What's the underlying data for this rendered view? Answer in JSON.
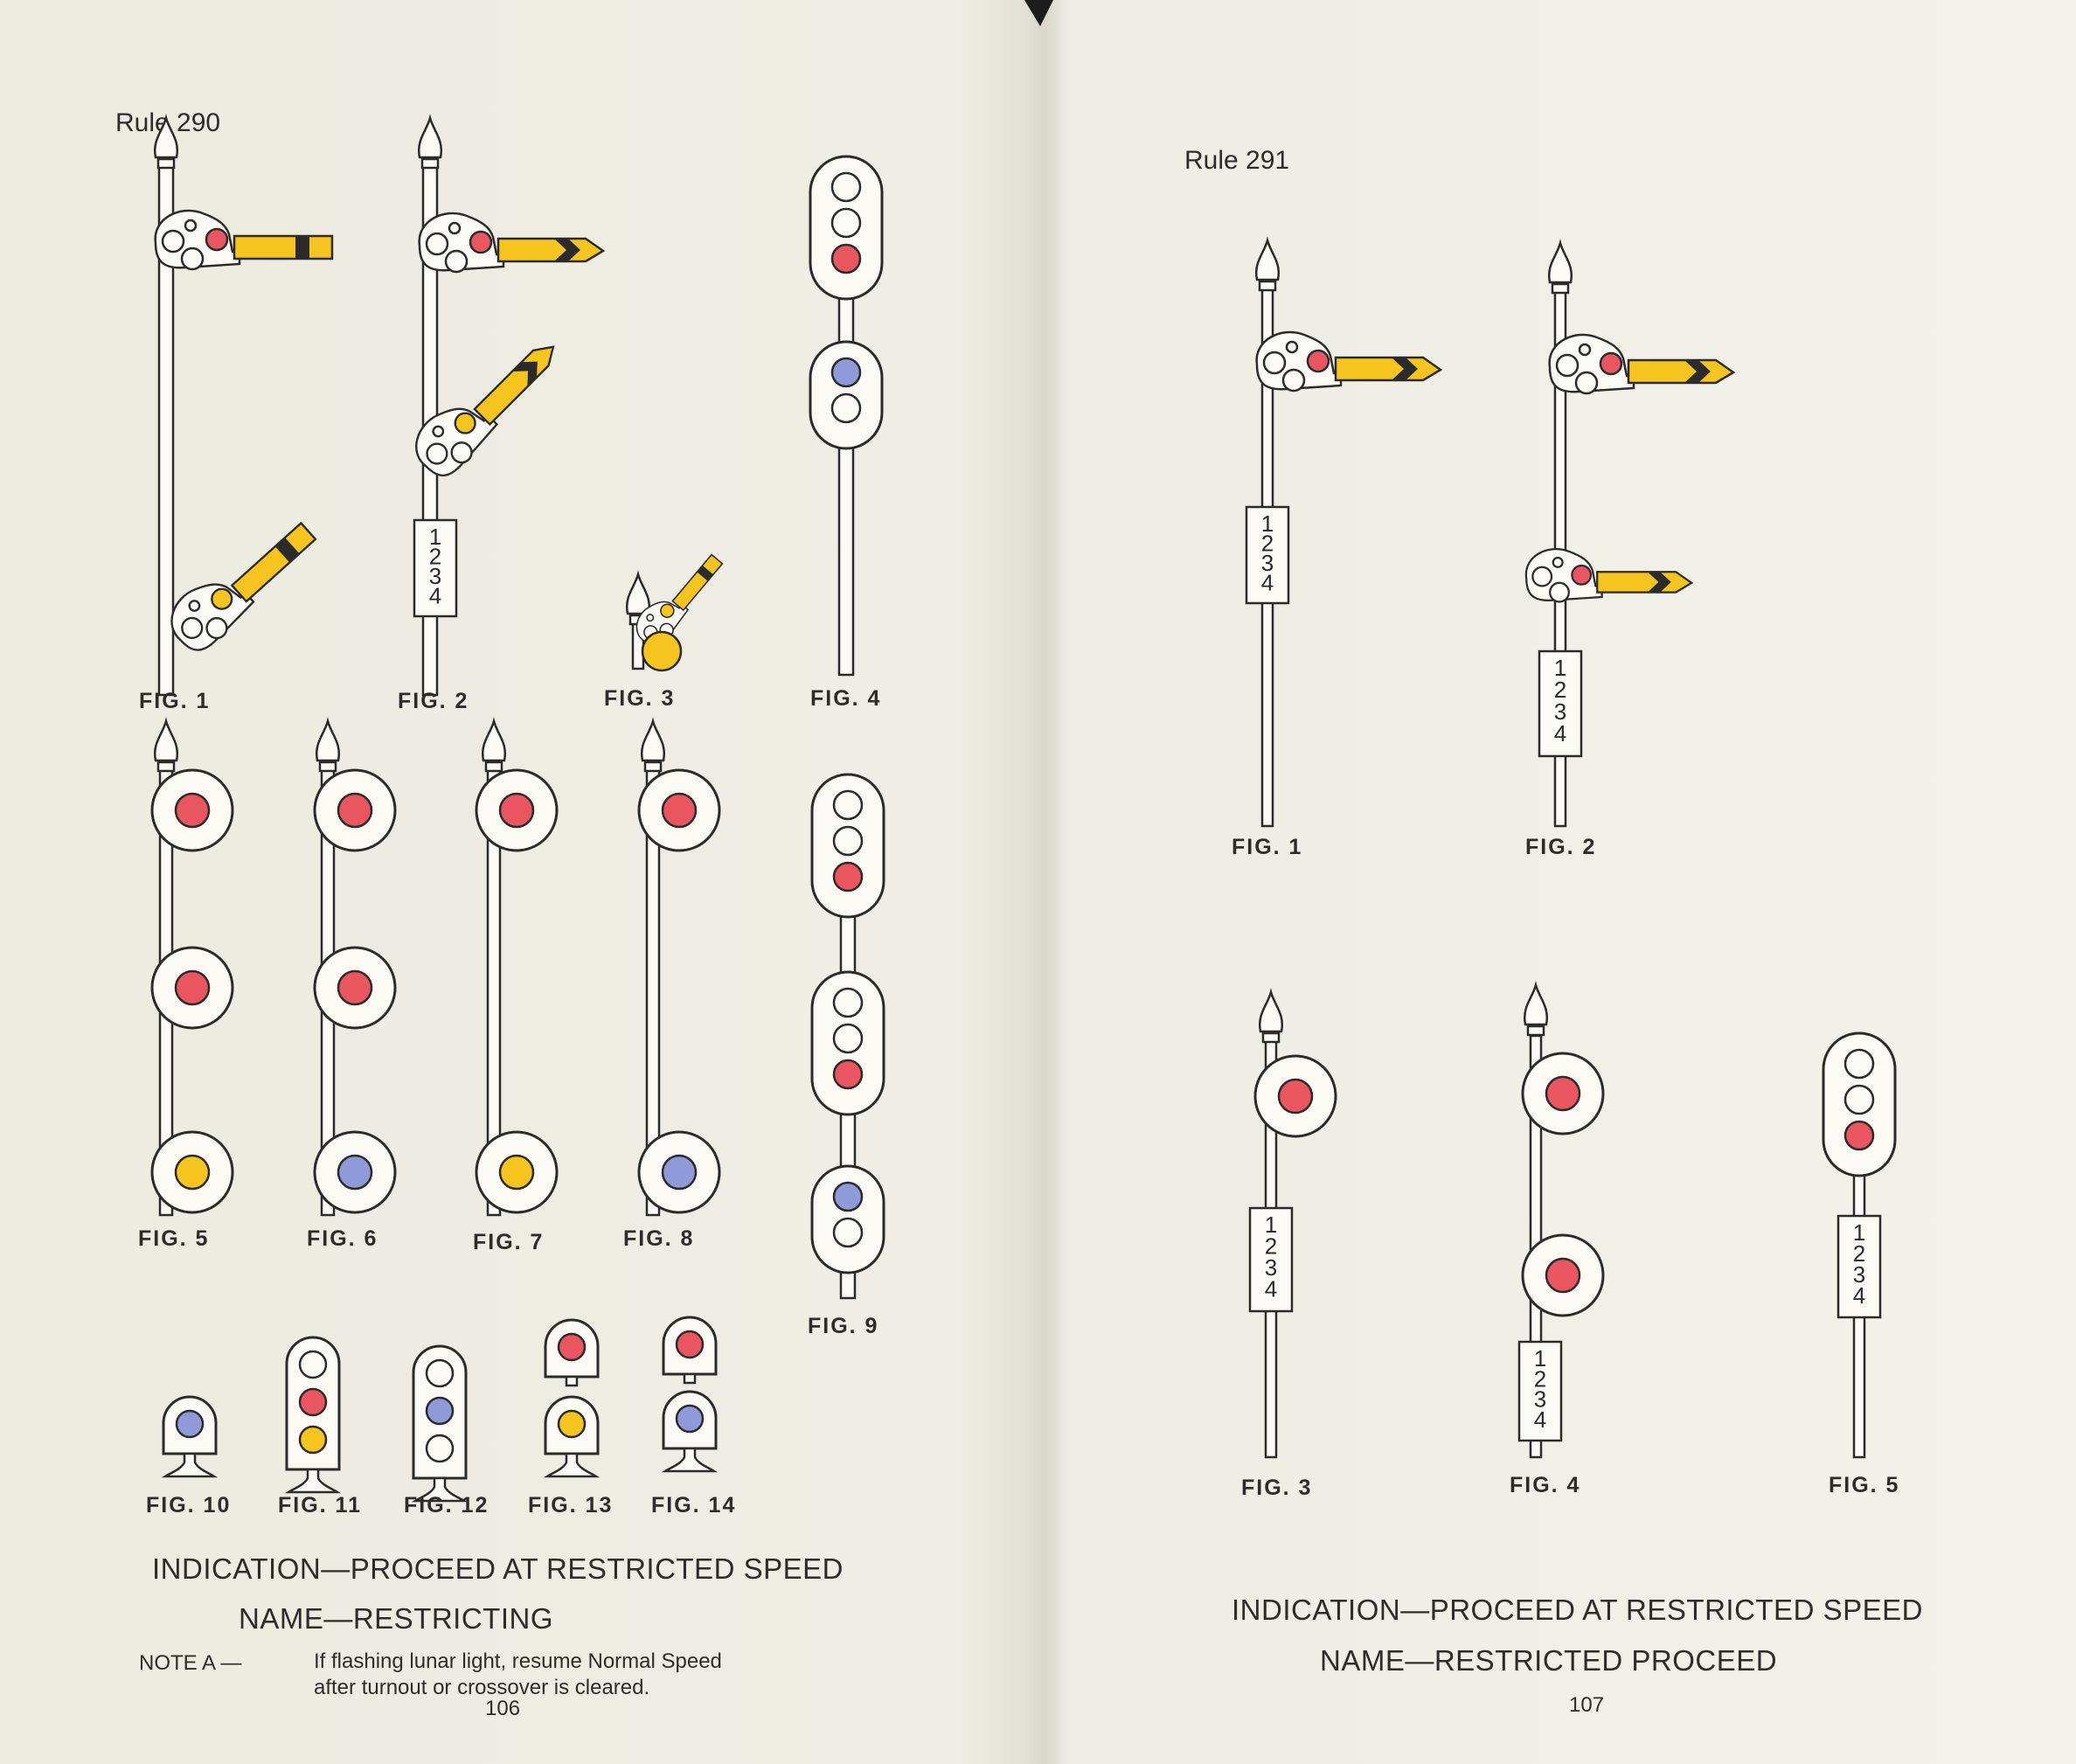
{
  "colors": {
    "red": "#ea5660",
    "yellow": "#f5c41e",
    "blue": "#8e9bd8",
    "off": "#fbfaf4",
    "ink": "#2b2b2b",
    "paper_left": "#efede2",
    "paper_right": "#f3f2ea"
  },
  "plate_digits": [
    "1",
    "2",
    "3",
    "4"
  ],
  "left_page": {
    "rule": "Rule 290",
    "figures": [
      {
        "label": "FIG. 1",
        "lights": [
          "red",
          "yellow"
        ]
      },
      {
        "label": "FIG. 2",
        "lights": [
          "red",
          "yellow"
        ]
      },
      {
        "label": "FIG. 3",
        "lights": [
          "yellow"
        ]
      },
      {
        "label": "FIG. 4",
        "lights": [
          "off",
          "off",
          "red",
          "blue",
          "off"
        ]
      },
      {
        "label": "FIG. 5",
        "lights": [
          "red",
          "red",
          "yellow"
        ]
      },
      {
        "label": "FIG. 6",
        "lights": [
          "red",
          "red",
          "blue"
        ]
      },
      {
        "label": "FIG. 7",
        "lights": [
          "red",
          "yellow"
        ]
      },
      {
        "label": "FIG. 8",
        "lights": [
          "red",
          "blue"
        ]
      },
      {
        "label": "FIG. 9",
        "lights": [
          "off",
          "off",
          "red",
          "off",
          "off",
          "red",
          "blue",
          "off"
        ]
      },
      {
        "label": "FIG. 10",
        "lights": [
          "blue"
        ]
      },
      {
        "label": "FIG. 11",
        "lights": [
          "off",
          "red",
          "yellow"
        ]
      },
      {
        "label": "FIG. 12",
        "lights": [
          "off",
          "blue",
          "off"
        ]
      },
      {
        "label": "FIG. 13",
        "lights": [
          "red",
          "yellow"
        ]
      },
      {
        "label": "FIG. 14",
        "lights": [
          "red",
          "blue"
        ]
      }
    ],
    "indication": "INDICATION—PROCEED AT RESTRICTED SPEED",
    "name": "NAME—RESTRICTING",
    "note_label": "NOTE A —",
    "note_lines": [
      "If flashing lunar light, resume Normal Speed",
      "after turnout or crossover is cleared."
    ],
    "page_number": "106"
  },
  "right_page": {
    "rule": "Rule 291",
    "figures": [
      {
        "label": "FIG. 1",
        "lights": [
          "red"
        ]
      },
      {
        "label": "FIG. 2",
        "lights": [
          "red",
          "red"
        ]
      },
      {
        "label": "FIG. 3",
        "lights": [
          "red"
        ]
      },
      {
        "label": "FIG. 4",
        "lights": [
          "red",
          "red"
        ]
      },
      {
        "label": "FIG. 5",
        "lights": [
          "off",
          "off",
          "red"
        ]
      }
    ],
    "indication": "INDICATION—PROCEED AT RESTRICTED SPEED",
    "name": "NAME—RESTRICTED PROCEED",
    "page_number": "107"
  }
}
